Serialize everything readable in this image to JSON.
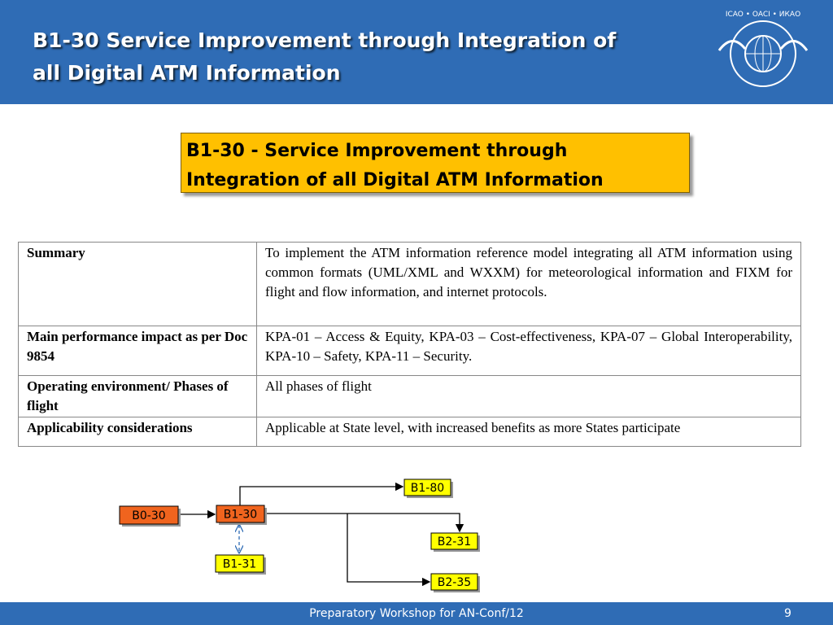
{
  "header": {
    "title_lines": [
      "B1-30 Service Improvement through Integration of",
      "all Digital ATM Information"
    ],
    "logo_text": "ICAO • OACI • ИКАО"
  },
  "callout": {
    "lines": [
      "B1-30 - Service Improvement through",
      "Integration of all Digital ATM Information"
    ]
  },
  "table": {
    "rows": [
      [
        "Summary",
        "To implement the ATM information reference model integrating all ATM information using common formats (UML/XML and WXXM) for meteorological information and FIXM for flight and flow information, and internet protocols."
      ],
      [
        "Main performance impact as per Doc 9854",
        "KPA-01 – Access & Equity, KPA-03 – Cost-effectiveness, KPA-07 – Global Interoperability, KPA-10 – Safety, KPA-11 – Security."
      ],
      [
        "Operating environment/ Phases of flight",
        "All phases of flight"
      ],
      [
        "Applicability considerations",
        "Applicable at State level, with increased benefits as more States participate"
      ]
    ]
  },
  "diagram": {
    "nodes": [
      {
        "label": "B0-30"
      },
      {
        "label": "B1-30"
      },
      {
        "label": "B1-80"
      },
      {
        "label": "B2-31"
      },
      {
        "label": "B1-31"
      },
      {
        "label": "B2-35"
      }
    ]
  },
  "footer": {
    "text": "Preparatory Workshop for AN-Conf/12",
    "page": "9"
  }
}
